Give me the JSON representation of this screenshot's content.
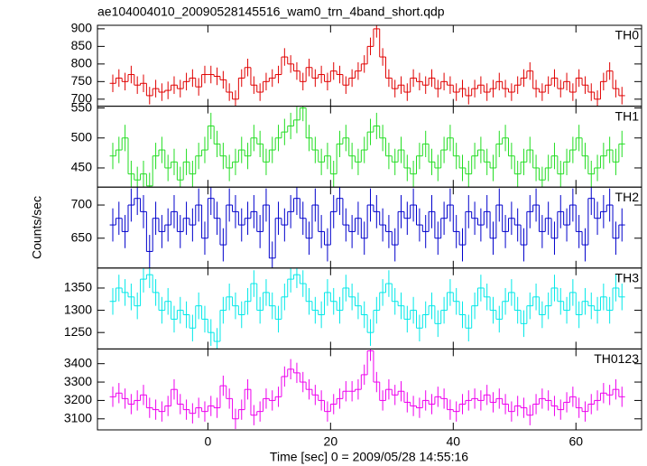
{
  "chart_data": {
    "type": "step",
    "title": "ae104004010_20090528145516_wam0_trn_4band_short.qdp",
    "xlabel": "Time [sec] 0 = 2009/05/28 14:55:16",
    "ylabel": "Counts/sec",
    "xlim": [
      -18,
      70.7
    ],
    "xticks": [
      0,
      20,
      40,
      60
    ],
    "x": [
      -15.5,
      -14.5,
      -13.5,
      -12.5,
      -11.5,
      -10.5,
      -9.5,
      -8.5,
      -7.5,
      -6.5,
      -5.5,
      -4.5,
      -3.5,
      -2.5,
      -1.5,
      -0.5,
      0.5,
      1.5,
      2.5,
      3.5,
      4.5,
      5.5,
      6.5,
      7.5,
      8.5,
      9.5,
      10.5,
      11.5,
      12.5,
      13.5,
      14.5,
      15.5,
      16.5,
      17.5,
      18.5,
      19.5,
      20.5,
      21.5,
      22.5,
      23.5,
      24.5,
      25.5,
      26.5,
      27.5,
      28.5,
      29.5,
      30.5,
      31.5,
      32.5,
      33.5,
      34.5,
      35.5,
      36.5,
      37.5,
      38.5,
      39.5,
      40.5,
      41.5,
      42.5,
      43.5,
      44.5,
      45.5,
      46.5,
      47.5,
      48.5,
      49.5,
      50.5,
      51.5,
      52.5,
      53.5,
      54.5,
      55.5,
      56.5,
      57.5,
      58.5,
      59.5,
      60.5,
      61.5,
      62.5,
      63.5,
      64.5,
      65.5,
      66.5,
      67.5
    ],
    "panels": [
      {
        "name": "TH0",
        "color": "#e00000",
        "error": 25,
        "ylim": [
          680,
          910
        ],
        "yticks": [
          700,
          750,
          800,
          850,
          900
        ],
        "values": [
          745,
          760,
          750,
          770,
          740,
          745,
          710,
          730,
          720,
          725,
          740,
          730,
          750,
          760,
          735,
          770,
          770,
          765,
          755,
          720,
          700,
          760,
          790,
          740,
          720,
          750,
          760,
          770,
          820,
          800,
          780,
          750,
          790,
          760,
          770,
          750,
          780,
          770,
          740,
          760,
          780,
          800,
          850,
          900,
          820,
          760,
          730,
          740,
          720,
          760,
          750,
          740,
          760,
          730,
          750,
          740,
          720,
          730,
          710,
          730,
          740,
          720,
          730,
          750,
          730,
          720,
          740,
          760,
          780,
          730,
          720,
          740,
          760,
          730,
          750,
          720,
          760,
          740,
          720,
          700,
          750,
          780,
          730,
          710
        ]
      },
      {
        "name": "TH1",
        "color": "#22dd22",
        "error": 22,
        "ylim": [
          418,
          553
        ],
        "yticks": [
          450,
          500,
          550
        ],
        "values": [
          470,
          480,
          500,
          440,
          430,
          440,
          420,
          470,
          480,
          450,
          460,
          430,
          460,
          440,
          470,
          480,
          520,
          490,
          470,
          450,
          460,
          480,
          470,
          500,
          490,
          460,
          480,
          500,
          510,
          520,
          530,
          550,
          500,
          480,
          460,
          470,
          440,
          490,
          500,
          470,
          460,
          480,
          510,
          520,
          500,
          470,
          460,
          480,
          450,
          440,
          470,
          490,
          460,
          450,
          480,
          500,
          470,
          450,
          440,
          470,
          480,
          460,
          450,
          490,
          500,
          470,
          440,
          460,
          480,
          450,
          430,
          450,
          470,
          440,
          460,
          480,
          500,
          470,
          440,
          450,
          470,
          480,
          460,
          490
        ]
      },
      {
        "name": "TH2",
        "color": "#0000cc",
        "error": 25,
        "ylim": [
          605,
          727
        ],
        "yticks": [
          650,
          700
        ],
        "values": [
          670,
          680,
          660,
          700,
          710,
          690,
          630,
          680,
          660,
          670,
          690,
          660,
          680,
          670,
          700,
          650,
          710,
          680,
          640,
          700,
          690,
          670,
          680,
          690,
          660,
          700,
          620,
          680,
          670,
          690,
          710,
          680,
          650,
          700,
          660,
          640,
          690,
          710,
          670,
          660,
          680,
          650,
          700,
          690,
          670,
          660,
          640,
          690,
          680,
          700,
          670,
          660,
          690,
          650,
          680,
          700,
          660,
          640,
          690,
          680,
          670,
          690,
          650,
          700,
          660,
          680,
          670,
          640,
          690,
          700,
          660,
          680,
          650,
          690,
          670,
          700,
          660,
          640,
          710,
          680,
          690,
          700,
          650,
          670
        ]
      },
      {
        "name": "TH3",
        "color": "#00e8e8",
        "error": 30,
        "ylim": [
          1213,
          1395
        ],
        "yticks": [
          1250,
          1300,
          1350
        ],
        "values": [
          1320,
          1350,
          1340,
          1330,
          1310,
          1370,
          1380,
          1340,
          1300,
          1320,
          1280,
          1300,
          1290,
          1260,
          1310,
          1280,
          1250,
          1230,
          1300,
          1330,
          1310,
          1290,
          1320,
          1360,
          1300,
          1340,
          1310,
          1280,
          1330,
          1370,
          1380,
          1360,
          1320,
          1300,
          1290,
          1340,
          1320,
          1300,
          1350,
          1330,
          1310,
          1290,
          1250,
          1300,
          1340,
          1360,
          1320,
          1310,
          1280,
          1300,
          1260,
          1290,
          1310,
          1270,
          1300,
          1340,
          1320,
          1290,
          1260,
          1310,
          1350,
          1330,
          1300,
          1280,
          1320,
          1340,
          1300,
          1270,
          1310,
          1330,
          1290,
          1310,
          1350,
          1320,
          1300,
          1340,
          1290,
          1320,
          1310,
          1300,
          1330,
          1300,
          1350,
          1330
        ]
      },
      {
        "name": "TH0123",
        "color": "#ee00ee",
        "error": 55,
        "ylim": [
          3040,
          3480
        ],
        "yticks": [
          3100,
          3200,
          3300,
          3400
        ],
        "values": [
          3220,
          3240,
          3210,
          3180,
          3200,
          3230,
          3160,
          3150,
          3140,
          3170,
          3260,
          3180,
          3150,
          3130,
          3160,
          3140,
          3170,
          3160,
          3280,
          3210,
          3100,
          3150,
          3260,
          3120,
          3140,
          3210,
          3200,
          3220,
          3330,
          3370,
          3350,
          3300,
          3260,
          3230,
          3200,
          3140,
          3180,
          3210,
          3250,
          3250,
          3260,
          3340,
          3470,
          3300,
          3200,
          3260,
          3230,
          3250,
          3190,
          3170,
          3160,
          3200,
          3180,
          3220,
          3210,
          3150,
          3140,
          3180,
          3200,
          3210,
          3200,
          3230,
          3190,
          3210,
          3180,
          3140,
          3170,
          3160,
          3120,
          3180,
          3210,
          3200,
          3170,
          3150,
          3190,
          3220,
          3160,
          3140,
          3180,
          3200,
          3240,
          3230,
          3260,
          3220
        ]
      }
    ]
  }
}
